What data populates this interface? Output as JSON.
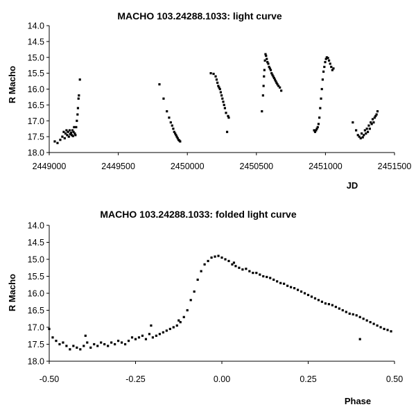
{
  "chart_data": [
    {
      "type": "scatter",
      "title": "MACHO 103.24288.1033: light curve",
      "xlabel": "JD",
      "ylabel": "R Macho",
      "xlim": [
        2449000,
        2451500
      ],
      "ylim": [
        14.0,
        18.0
      ],
      "y_inverted": true,
      "xticks": [
        2449000,
        2449500,
        2450000,
        2450500,
        2451000,
        2451500
      ],
      "xtick_labels": [
        "2449000",
        "2449500",
        "2450000",
        "2450500",
        "2451000",
        "2451500"
      ],
      "yticks": [
        14.0,
        14.5,
        15.0,
        15.5,
        16.0,
        16.5,
        17.0,
        17.5,
        18.0
      ],
      "ytick_labels": [
        "14.0",
        "14.5",
        "15.0",
        "15.5",
        "16.0",
        "16.5",
        "17.0",
        "17.5",
        "18.0"
      ],
      "grid": false,
      "marker_color": "#000000",
      "series": [
        {
          "x": [
            2449040,
            2449060,
            2449080,
            2449095,
            2449105,
            2449112,
            2449118,
            2449125,
            2449130,
            2449136,
            2449142,
            2449148,
            2449152,
            2449158,
            2449163,
            2449168,
            2449172,
            2449176,
            2449180,
            2449185,
            2449190,
            2449195,
            2449200,
            2449205,
            2449208,
            2449212,
            2449215,
            2449222,
            2449798,
            2449828,
            2449852,
            2449868,
            2449880,
            2449890,
            2449898,
            2449905,
            2449912,
            2449918,
            2449924,
            2449930,
            2449936,
            2449942,
            2449948,
            2450170,
            2450190,
            2450205,
            2450212,
            2450218,
            2450224,
            2450230,
            2450236,
            2450242,
            2450248,
            2450254,
            2450260,
            2450266,
            2450272,
            2450280,
            2450288,
            2450295,
            2450300,
            2450540,
            2450548,
            2450552,
            2450555,
            2450558,
            2450562,
            2450566,
            2450570,
            2450575,
            2450580,
            2450586,
            2450592,
            2450598,
            2450604,
            2450610,
            2450616,
            2450622,
            2450628,
            2450634,
            2450640,
            2450646,
            2450652,
            2450660,
            2450670,
            2450680,
            2450918,
            2450925,
            2450932,
            2450938,
            2450944,
            2450950,
            2450956,
            2450962,
            2450968,
            2450974,
            2450980,
            2450986,
            2450992,
            2450998,
            2451004,
            2451010,
            2451018,
            2451026,
            2451034,
            2451042,
            2451050,
            2451058,
            2451198,
            2451222,
            2451235,
            2451245,
            2451255,
            2451262,
            2451270,
            2451278,
            2451286,
            2451293,
            2451300,
            2451307,
            2451314,
            2451321,
            2451328,
            2451335,
            2451342,
            2451349,
            2451356,
            2451363,
            2451370,
            2451377
          ],
          "y": [
            17.65,
            17.7,
            17.6,
            17.5,
            17.35,
            17.55,
            17.4,
            17.3,
            17.45,
            17.35,
            17.5,
            17.3,
            17.42,
            17.38,
            17.45,
            17.3,
            17.48,
            17.35,
            17.2,
            17.4,
            17.45,
            17.2,
            17.0,
            16.8,
            16.6,
            16.3,
            16.2,
            15.7,
            15.85,
            16.3,
            16.7,
            16.9,
            17.05,
            17.15,
            17.25,
            17.35,
            17.4,
            17.45,
            17.5,
            17.55,
            17.6,
            17.62,
            17.65,
            15.5,
            15.52,
            15.6,
            15.7,
            15.8,
            15.9,
            15.95,
            16.0,
            16.1,
            16.2,
            16.3,
            16.4,
            16.5,
            16.6,
            16.75,
            17.35,
            16.85,
            16.9,
            16.7,
            16.2,
            15.9,
            15.6,
            15.4,
            15.1,
            14.9,
            14.95,
            15.05,
            15.15,
            15.2,
            15.3,
            15.35,
            15.4,
            15.5,
            15.55,
            15.6,
            15.65,
            15.7,
            15.75,
            15.8,
            15.85,
            15.9,
            15.95,
            16.05,
            17.3,
            17.35,
            17.3,
            17.25,
            17.2,
            17.1,
            16.9,
            16.6,
            16.3,
            16.0,
            15.7,
            15.45,
            15.3,
            15.15,
            15.05,
            15.0,
            15.02,
            15.1,
            15.2,
            15.3,
            15.4,
            15.35,
            17.05,
            17.3,
            17.45,
            17.5,
            17.55,
            17.4,
            17.52,
            17.45,
            17.3,
            17.4,
            17.25,
            17.35,
            17.15,
            17.25,
            17.05,
            17.1,
            16.95,
            17.05,
            16.9,
            16.85,
            16.8,
            16.7
          ]
        }
      ]
    },
    {
      "type": "scatter",
      "title": "MACHO 103.24288.1033: folded light curve",
      "xlabel": "Phase",
      "ylabel": "R Macho",
      "xlim": [
        -0.5,
        0.5
      ],
      "ylim": [
        14.0,
        18.0
      ],
      "y_inverted": true,
      "xticks": [
        -0.5,
        -0.25,
        0.0,
        0.25,
        0.5
      ],
      "xtick_labels": [
        "-0.50",
        "-0.25",
        "0.00",
        "0.25",
        "0.50"
      ],
      "yticks": [
        14.0,
        14.5,
        15.0,
        15.5,
        16.0,
        16.5,
        17.0,
        17.5,
        18.0
      ],
      "ytick_labels": [
        "14.0",
        "14.5",
        "15.0",
        "15.5",
        "16.0",
        "16.5",
        "17.0",
        "17.5",
        "18.0"
      ],
      "grid": false,
      "marker_color": "#000000",
      "series": [
        {
          "x": [
            -0.5,
            -0.49,
            -0.48,
            -0.47,
            -0.46,
            -0.45,
            -0.44,
            -0.43,
            -0.42,
            -0.41,
            -0.4,
            -0.39,
            -0.38,
            -0.37,
            -0.36,
            -0.35,
            -0.34,
            -0.33,
            -0.32,
            -0.31,
            -0.3,
            -0.29,
            -0.28,
            -0.27,
            -0.26,
            -0.25,
            -0.24,
            -0.23,
            -0.22,
            -0.21,
            -0.2,
            -0.19,
            -0.18,
            -0.17,
            -0.16,
            -0.15,
            -0.14,
            -0.13,
            -0.12,
            -0.11,
            -0.1,
            -0.09,
            -0.08,
            -0.07,
            -0.06,
            -0.05,
            -0.04,
            -0.03,
            -0.02,
            -0.01,
            0.0,
            0.01,
            0.02,
            0.03,
            0.04,
            0.05,
            0.06,
            0.07,
            0.08,
            0.09,
            0.1,
            0.11,
            0.12,
            0.13,
            0.14,
            0.15,
            0.16,
            0.17,
            0.18,
            0.19,
            0.2,
            0.21,
            0.22,
            0.23,
            0.24,
            0.25,
            0.26,
            0.27,
            0.28,
            0.29,
            0.3,
            0.31,
            0.32,
            0.33,
            0.34,
            0.35,
            0.36,
            0.37,
            0.38,
            0.39,
            0.4,
            0.41,
            0.42,
            0.43,
            0.44,
            0.45,
            0.46,
            0.47,
            0.48,
            0.49,
            -0.395,
            -0.205,
            -0.125,
            0.035,
            0.4
          ],
          "y": [
            17.05,
            17.3,
            17.4,
            17.5,
            17.45,
            17.55,
            17.65,
            17.55,
            17.6,
            17.65,
            17.55,
            17.45,
            17.6,
            17.5,
            17.55,
            17.45,
            17.5,
            17.55,
            17.45,
            17.5,
            17.4,
            17.45,
            17.5,
            17.4,
            17.3,
            17.35,
            17.3,
            17.25,
            17.35,
            17.2,
            17.3,
            17.25,
            17.2,
            17.15,
            17.1,
            17.05,
            17.0,
            16.95,
            16.85,
            16.7,
            16.5,
            16.2,
            15.95,
            15.6,
            15.35,
            15.15,
            15.05,
            14.95,
            14.92,
            14.9,
            14.95,
            15.0,
            15.05,
            15.15,
            15.2,
            15.25,
            15.3,
            15.28,
            15.35,
            15.4,
            15.4,
            15.45,
            15.5,
            15.52,
            15.55,
            15.6,
            15.65,
            15.7,
            15.72,
            15.78,
            15.82,
            15.85,
            15.9,
            15.95,
            16.0,
            16.05,
            16.1,
            16.15,
            16.2,
            16.25,
            16.3,
            16.32,
            16.35,
            16.4,
            16.45,
            16.5,
            16.55,
            16.6,
            16.62,
            16.65,
            16.7,
            16.75,
            16.8,
            16.85,
            16.9,
            16.95,
            17.0,
            17.05,
            17.08,
            17.12,
            17.25,
            16.95,
            16.8,
            15.1,
            17.35
          ]
        }
      ]
    }
  ]
}
